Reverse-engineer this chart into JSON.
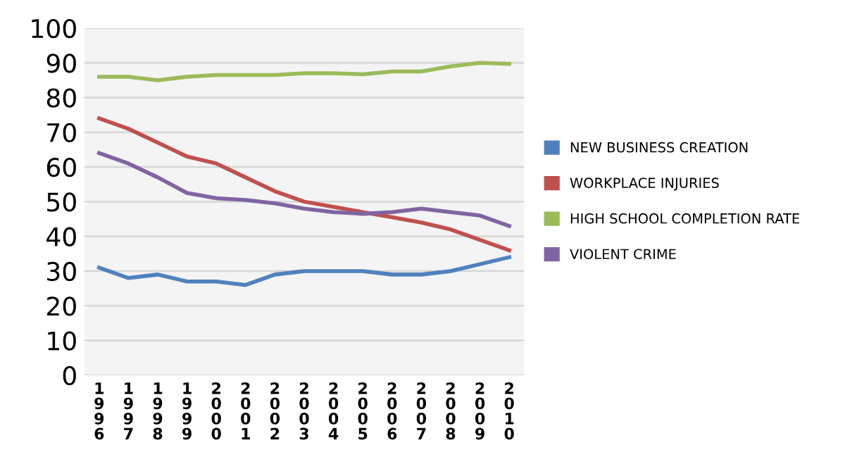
{
  "chart_data": {
    "type": "line",
    "categories": [
      "1996",
      "1997",
      "1998",
      "1999",
      "2000",
      "2001",
      "2002",
      "2003",
      "2004",
      "2005",
      "2006",
      "2007",
      "2008",
      "2009",
      "2010"
    ],
    "series": [
      {
        "name": "NEW BUSINESS CREATION",
        "color": "#4f81bd",
        "values": [
          31,
          28,
          29,
          27,
          27,
          26,
          29,
          30,
          30,
          30,
          29,
          29,
          30,
          32,
          34
        ]
      },
      {
        "name": "WORKPLACE INJURIES",
        "color": "#c0504d",
        "values": [
          74,
          71,
          67,
          63,
          61,
          57,
          53,
          50,
          48.5,
          47,
          45.5,
          44,
          42,
          39,
          36
        ]
      },
      {
        "name": "HIGH SCHOOL COMPLETION RATE",
        "color": "#9bbb59",
        "values": [
          86,
          86,
          85,
          86,
          86.5,
          86.5,
          86.5,
          87,
          87,
          86.7,
          87.5,
          87.5,
          89,
          90,
          89.7
        ]
      },
      {
        "name": "VIOLENT CRIME",
        "color": "#8064a2",
        "values": [
          64,
          61,
          57,
          52.5,
          51,
          50.5,
          49.5,
          48,
          47,
          46.5,
          47,
          48,
          47,
          46,
          43
        ]
      }
    ],
    "ylim": [
      0,
      100
    ],
    "yticks": [
      0,
      10,
      20,
      30,
      40,
      50,
      60,
      70,
      80,
      90,
      100
    ],
    "grid": "y",
    "legend": "right",
    "marker": "none",
    "line_style": "solid"
  }
}
